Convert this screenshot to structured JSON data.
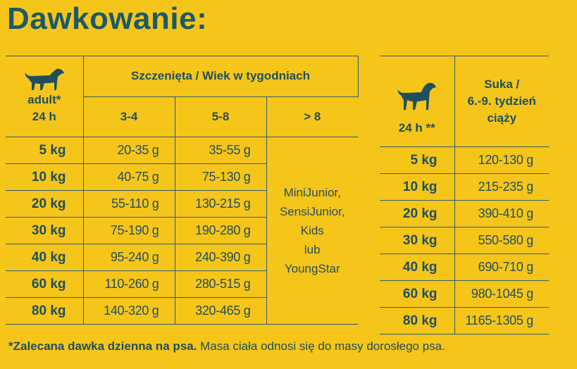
{
  "title": "Dawkowanie:",
  "left_table": {
    "corner_label_1": "adult*",
    "corner_label_2": "24 h",
    "group_header": "Szczenięta / Wiek w tygodniach",
    "age_columns": [
      "3-4",
      "5-8",
      "> 8"
    ],
    "rows": [
      {
        "weight": "5 kg",
        "c1": "20-35 g",
        "c2": "35-55 g"
      },
      {
        "weight": "10 kg",
        "c1": "40-75 g",
        "c2": "75-130 g"
      },
      {
        "weight": "20 kg",
        "c1": "55-110 g",
        "c2": "130-215 g"
      },
      {
        "weight": "30 kg",
        "c1": "75-190 g",
        "c2": "190-280 g"
      },
      {
        "weight": "40 kg",
        "c1": "95-240 g",
        "c2": "240-390 g"
      },
      {
        "weight": "60 kg",
        "c1": "110-260 g",
        "c2": "280-515 g"
      },
      {
        "weight": "80 kg",
        "c1": "140-320 g",
        "c2": "320-465 g"
      }
    ],
    "over8_lines": [
      "MiniJunior,",
      "SensiJunior,",
      "Kids",
      "lub",
      "YoungStar"
    ]
  },
  "right_table": {
    "corner_label": "24 h **",
    "header_lines": [
      "Suka /",
      "6.-9. tydzień",
      "ciąży"
    ],
    "rows": [
      {
        "weight": "5 kg",
        "value": "120-130 g"
      },
      {
        "weight": "10 kg",
        "value": "215-235 g"
      },
      {
        "weight": "20 kg",
        "value": "390-410 g"
      },
      {
        "weight": "30 kg",
        "value": "550-580 g"
      },
      {
        "weight": "40 kg",
        "value": "690-710 g"
      },
      {
        "weight": "60 kg",
        "value": "980-1045 g"
      },
      {
        "weight": "80 kg",
        "value": "1165-1305 g"
      }
    ]
  },
  "footnote": {
    "bold": "*Zalecana dawka dzienna na psa.",
    "normal": " Masa ciała odnosi się do masy dorosłego psa."
  },
  "colors": {
    "background": "#f6c51a",
    "text": "#1f4f5c",
    "title": "#1b5a68"
  }
}
